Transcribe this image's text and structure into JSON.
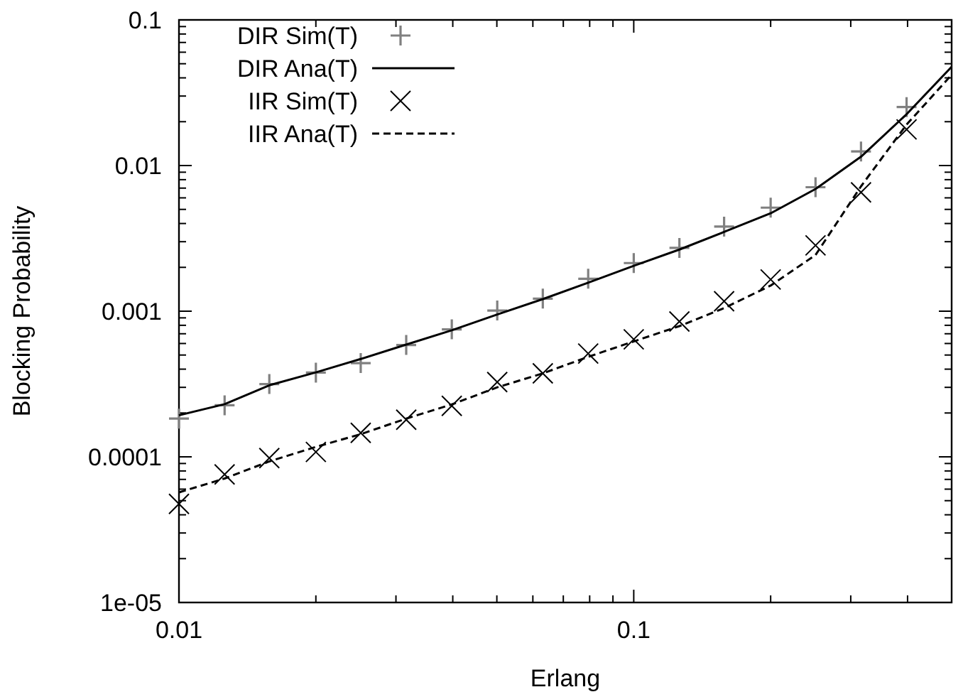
{
  "chart_data": {
    "type": "line",
    "xlabel": "Erlang",
    "ylabel": "Blocking Probability",
    "log": "xy",
    "legend": "top left",
    "grid": false,
    "xlim": [
      0.01,
      0.5
    ],
    "ylim": [
      1e-05,
      0.1
    ],
    "xticks": [
      0.01,
      {
        "value": 0.02,
        "label": null
      },
      {
        "value": 0.03,
        "label": null
      },
      {
        "value": 0.04,
        "label": null
      },
      {
        "value": 0.05,
        "label": null
      },
      {
        "value": 0.06,
        "label": null
      },
      {
        "value": 0.07,
        "label": null
      },
      {
        "value": 0.08,
        "label": null
      },
      {
        "value": 0.09,
        "label": null
      },
      0.1,
      {
        "value": 0.2,
        "label": null
      },
      {
        "value": 0.3,
        "label": null
      },
      {
        "value": 0.4,
        "label": null
      },
      {
        "value": 0.5,
        "label": null
      }
    ],
    "yticks": [
      {
        "value": 1e-05,
        "label": "1e-05"
      },
      {
        "value": 2e-05,
        "label": null
      },
      {
        "value": 3e-05,
        "label": null
      },
      {
        "value": 4e-05,
        "label": null
      },
      {
        "value": 5e-05,
        "label": null
      },
      {
        "value": 6e-05,
        "label": null
      },
      {
        "value": 7e-05,
        "label": null
      },
      {
        "value": 8e-05,
        "label": null
      },
      {
        "value": 9e-05,
        "label": null
      },
      0.0001,
      {
        "value": 0.0002,
        "label": null
      },
      {
        "value": 0.0003,
        "label": null
      },
      {
        "value": 0.0004,
        "label": null
      },
      {
        "value": 0.0005,
        "label": null
      },
      {
        "value": 0.0006,
        "label": null
      },
      {
        "value": 0.0007,
        "label": null
      },
      {
        "value": 0.0008,
        "label": null
      },
      {
        "value": 0.0009,
        "label": null
      },
      0.001,
      {
        "value": 0.002,
        "label": null
      },
      {
        "value": 0.003,
        "label": null
      },
      {
        "value": 0.004,
        "label": null
      },
      {
        "value": 0.005,
        "label": null
      },
      {
        "value": 0.006,
        "label": null
      },
      {
        "value": 0.007,
        "label": null
      },
      {
        "value": 0.008,
        "label": null
      },
      {
        "value": 0.009,
        "label": null
      },
      0.01,
      {
        "value": 0.02,
        "label": null
      },
      {
        "value": 0.03,
        "label": null
      },
      {
        "value": 0.04,
        "label": null
      },
      {
        "value": 0.05,
        "label": null
      },
      {
        "value": 0.06,
        "label": null
      },
      {
        "value": 0.07,
        "label": null
      },
      {
        "value": 0.08,
        "label": null
      },
      {
        "value": 0.09,
        "label": null
      },
      0.1
    ],
    "series": [
      {
        "name": "DIR Sim(T)",
        "type": "scatter",
        "marker": "plus",
        "color": "#808080",
        "x": [
          0.01,
          0.0126,
          0.0158,
          0.02,
          0.0251,
          0.0316,
          0.0398,
          0.0501,
          0.0631,
          0.0794,
          0.1,
          0.126,
          0.158,
          0.2,
          0.251,
          0.316,
          0.398
        ],
        "values": [
          0.000183,
          0.000226,
          0.000316,
          0.000379,
          0.00044,
          0.000586,
          0.00075,
          0.00101,
          0.00122,
          0.00167,
          0.00214,
          0.00272,
          0.00381,
          0.00514,
          0.0071,
          0.0125,
          0.0252
        ]
      },
      {
        "name": "DIR Ana(T)",
        "type": "line",
        "marker": "none",
        "line_style": "solid",
        "color": "#000000",
        "x": [
          0.01,
          0.0126,
          0.0158,
          0.02,
          0.0251,
          0.0316,
          0.0398,
          0.0501,
          0.0631,
          0.0794,
          0.1,
          0.126,
          0.158,
          0.2,
          0.251,
          0.316,
          0.398,
          0.5
        ],
        "values": [
          0.000193,
          0.00023,
          0.00031,
          0.00038,
          0.00047,
          0.00059,
          0.00074,
          0.00095,
          0.00121,
          0.00157,
          0.00205,
          0.00265,
          0.0035,
          0.0047,
          0.0069,
          0.0115,
          0.0225,
          0.0476
        ]
      },
      {
        "name": "IIR Sim(T)",
        "type": "scatter",
        "marker": "cross",
        "color": "#000000",
        "x": [
          0.01,
          0.0126,
          0.0158,
          0.02,
          0.0251,
          0.0316,
          0.0398,
          0.0501,
          0.0631,
          0.0794,
          0.1,
          0.126,
          0.158,
          0.2,
          0.251,
          0.316,
          0.398
        ],
        "values": [
          4.75e-05,
          7.57e-05,
          9.8e-05,
          0.000108,
          0.000146,
          0.00018,
          0.000224,
          0.000326,
          0.000374,
          0.000512,
          0.000641,
          0.00085,
          0.00117,
          0.00165,
          0.00283,
          0.00654,
          0.0177
        ]
      },
      {
        "name": "IIR Ana(T)",
        "type": "line",
        "marker": "none",
        "line_style": "dashed",
        "color": "#000000",
        "x": [
          0.01,
          0.0126,
          0.0158,
          0.02,
          0.0251,
          0.0316,
          0.0398,
          0.0501,
          0.0631,
          0.0794,
          0.1,
          0.126,
          0.158,
          0.2,
          0.251,
          0.316,
          0.398,
          0.5
        ],
        "values": [
          5.7e-05,
          7.1e-05,
          9.3e-05,
          0.000117,
          0.000143,
          0.000183,
          0.000229,
          0.0003,
          0.000374,
          0.000486,
          0.00062,
          0.00079,
          0.00105,
          0.0015,
          0.00243,
          0.0072,
          0.0191,
          0.042
        ]
      }
    ]
  }
}
